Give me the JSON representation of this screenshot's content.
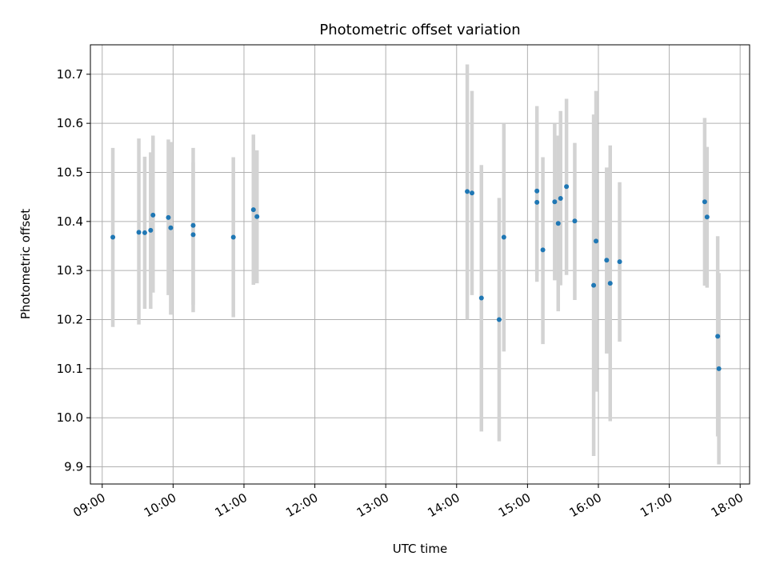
{
  "chart_data": {
    "type": "scatter",
    "title": "Photometric offset variation",
    "xlabel": "UTC time",
    "ylabel": "Photometric offset",
    "x_ticks": [
      "09:00",
      "10:00",
      "11:00",
      "12:00",
      "13:00",
      "14:00",
      "15:00",
      "16:00",
      "17:00",
      "18:00"
    ],
    "y_ticks": [
      "9.9",
      "10.0",
      "10.1",
      "10.2",
      "10.3",
      "10.4",
      "10.5",
      "10.6",
      "10.7"
    ],
    "xlim": [
      "08:50",
      "18:08"
    ],
    "ylim": [
      9.865,
      10.76
    ],
    "grid": true,
    "colors": {
      "point": "#1f77b4",
      "errorbar": "#d3d3d3",
      "grid": "#b0b0b0"
    },
    "points": [
      {
        "x": "09:09",
        "y": 10.368,
        "lo": 10.185,
        "hi": 10.55
      },
      {
        "x": "09:31",
        "y": 10.378,
        "lo": 10.19,
        "hi": 10.569
      },
      {
        "x": "09:36",
        "y": 10.377,
        "lo": 10.222,
        "hi": 10.532
      },
      {
        "x": "09:41",
        "y": 10.382,
        "lo": 10.222,
        "hi": 10.541
      },
      {
        "x": "09:43",
        "y": 10.413,
        "lo": 10.255,
        "hi": 10.575
      },
      {
        "x": "09:56",
        "y": 10.408,
        "lo": 10.25,
        "hi": 10.567
      },
      {
        "x": "09:58",
        "y": 10.387,
        "lo": 10.21,
        "hi": 10.562
      },
      {
        "x": "10:17",
        "y": 10.392,
        "lo": 10.215,
        "hi": 10.55
      },
      {
        "x": "10:17",
        "y": 10.373,
        "lo": 10.23,
        "hi": 10.52
      },
      {
        "x": "10:51",
        "y": 10.368,
        "lo": 10.205,
        "hi": 10.531
      },
      {
        "x": "11:08",
        "y": 10.424,
        "lo": 10.271,
        "hi": 10.577
      },
      {
        "x": "11:11",
        "y": 10.41,
        "lo": 10.274,
        "hi": 10.545
      },
      {
        "x": "14:09",
        "y": 10.461,
        "lo": 10.2,
        "hi": 10.72
      },
      {
        "x": "14:13",
        "y": 10.458,
        "lo": 10.25,
        "hi": 10.666
      },
      {
        "x": "14:21",
        "y": 10.244,
        "lo": 9.972,
        "hi": 10.515
      },
      {
        "x": "14:36",
        "y": 10.2,
        "lo": 9.952,
        "hi": 10.448
      },
      {
        "x": "14:40",
        "y": 10.368,
        "lo": 10.135,
        "hi": 10.6
      },
      {
        "x": "15:08",
        "y": 10.439,
        "lo": 10.277,
        "hi": 10.6
      },
      {
        "x": "15:08",
        "y": 10.462,
        "lo": 10.29,
        "hi": 10.635
      },
      {
        "x": "15:13",
        "y": 10.342,
        "lo": 10.15,
        "hi": 10.531
      },
      {
        "x": "15:23",
        "y": 10.44,
        "lo": 10.28,
        "hi": 10.6
      },
      {
        "x": "15:26",
        "y": 10.396,
        "lo": 10.217,
        "hi": 10.575
      },
      {
        "x": "15:28",
        "y": 10.447,
        "lo": 10.27,
        "hi": 10.625
      },
      {
        "x": "15:33",
        "y": 10.471,
        "lo": 10.291,
        "hi": 10.65
      },
      {
        "x": "15:40",
        "y": 10.401,
        "lo": 10.24,
        "hi": 10.56
      },
      {
        "x": "15:56",
        "y": 10.27,
        "lo": 9.922,
        "hi": 10.618
      },
      {
        "x": "15:58",
        "y": 10.36,
        "lo": 10.053,
        "hi": 10.666
      },
      {
        "x": "16:07",
        "y": 10.321,
        "lo": 10.131,
        "hi": 10.51
      },
      {
        "x": "16:10",
        "y": 10.274,
        "lo": 9.993,
        "hi": 10.555
      },
      {
        "x": "16:18",
        "y": 10.318,
        "lo": 10.155,
        "hi": 10.48
      },
      {
        "x": "17:30",
        "y": 10.44,
        "lo": 10.269,
        "hi": 10.611
      },
      {
        "x": "17:32",
        "y": 10.409,
        "lo": 10.265,
        "hi": 10.552
      },
      {
        "x": "17:41",
        "y": 10.166,
        "lo": 9.962,
        "hi": 10.37
      },
      {
        "x": "17:42",
        "y": 10.1,
        "lo": 9.905,
        "hi": 10.295
      }
    ]
  }
}
